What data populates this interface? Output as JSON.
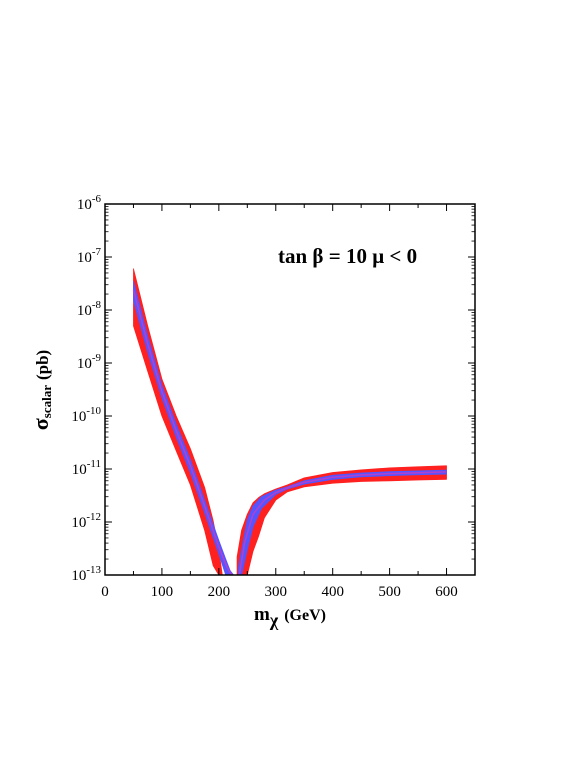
{
  "chart_data": {
    "type": "area",
    "annotation": "tan β = 10  μ < 0",
    "xlabel": {
      "main": "m",
      "sub": "χ",
      "units": "(GeV)"
    },
    "ylabel": {
      "main": "σ",
      "sub": "scalar",
      "units": "(pb)"
    },
    "xlim": [
      0,
      650
    ],
    "ylim_log10": [
      -13,
      -6
    ],
    "yscale": "log",
    "x_ticks": [
      0,
      100,
      200,
      300,
      400,
      500,
      600
    ],
    "y_ticks": [
      {
        "exp": -13,
        "base": "10",
        "power": "-13"
      },
      {
        "exp": -12,
        "base": "10",
        "power": "-12"
      },
      {
        "exp": -11,
        "base": "10",
        "power": "-11"
      },
      {
        "exp": -10,
        "base": "10",
        "power": "-10"
      },
      {
        "exp": -9,
        "base": "10",
        "power": "-9"
      },
      {
        "exp": -8,
        "base": "10",
        "power": "-8"
      },
      {
        "exp": -7,
        "base": "10",
        "power": "-7"
      },
      {
        "exp": -6,
        "base": "10",
        "power": "-6"
      }
    ],
    "colors": {
      "outer_band": "#ff2020",
      "inner_band": "#5555ff",
      "central_line": "#b040d0"
    },
    "series": [
      {
        "band": "outer",
        "segments": [
          {
            "x": [
              50,
              75,
              100,
              125,
              150,
              175,
              190,
              200,
              206,
              210
            ],
            "y_upper": [
              6e-08,
              5e-09,
              5e-10,
              1e-10,
              2.4e-11,
              4.5e-12,
              1.05e-12,
              3e-13,
              1e-13,
              1e-13
            ],
            "y_lower": [
              5e-09,
              7e-10,
              1e-10,
              2.2e-11,
              5e-12,
              7e-13,
              1.5e-13,
              1e-13,
              1e-13,
              1e-13
            ]
          },
          {
            "x": [
              232,
              240,
              250,
              260,
              270,
              280,
              300,
              320,
              350,
              400,
              450,
              500,
              550,
              600
            ],
            "y_upper": [
              2.2e-13,
              7e-13,
              1.4e-12,
              2.3e-12,
              2.9e-12,
              3.4e-12,
              4.2e-12,
              5e-12,
              6.8e-12,
              8.6e-12,
              9.6e-12,
              1.05e-11,
              1.1e-11,
              1.15e-11
            ],
            "y_lower": [
              1e-13,
              1e-13,
              1e-13,
              2.8e-13,
              5.5e-13,
              1.2e-12,
              2.6e-12,
              3.7e-12,
              4.6e-12,
              5.4e-12,
              5.8e-12,
              6e-12,
              6.2e-12,
              6.4e-12
            ]
          }
        ]
      },
      {
        "band": "inner",
        "segments": [
          {
            "x": [
              50,
              75,
              100,
              125,
              150,
              175,
              200,
              212,
              220,
              226
            ],
            "y_upper": [
              3.5e-08,
              3.2e-09,
              3.8e-10,
              7e-11,
              1.5e-11,
              2.6e-12,
              4.5e-13,
              2e-13,
              1.2e-13,
              1e-13
            ],
            "y_lower": [
              1.5e-08,
              1.6e-09,
              2.2e-10,
              4e-11,
              8.5e-12,
              1.5e-12,
              2.5e-13,
              1e-13,
              1e-13,
              1e-13
            ]
          },
          {
            "x": [
              234,
              240,
              250,
              260,
              275,
              300,
              320,
              350,
              400,
              450,
              500,
              550,
              600
            ],
            "y_upper": [
              1.3e-13,
              3e-13,
              1.1e-12,
              2e-12,
              3e-12,
              4e-12,
              4.6e-12,
              6e-12,
              7.6e-12,
              8.4e-12,
              8.9e-12,
              9.2e-12,
              9.5e-12
            ],
            "y_lower": [
              1e-13,
              1e-13,
              3e-13,
              8e-13,
              1.8e-12,
              3.3e-12,
              4.2e-12,
              5.2e-12,
              6.4e-12,
              7.1e-12,
              7.5e-12,
              7.8e-12,
              8e-12
            ]
          }
        ]
      },
      {
        "band": "central",
        "segments": [
          {
            "x": [
              50,
              75,
              100,
              125,
              150,
              175,
              200,
              212,
              220,
              224
            ],
            "y": [
              2.4e-08,
              2.3e-09,
              2.9e-10,
              5.3e-11,
              1.15e-11,
              2e-12,
              3.4e-13,
              1.6e-13,
              1.1e-13,
              1e-13
            ]
          },
          {
            "x": [
              236,
              245,
              260,
              280,
              300,
              320,
              350,
              400,
              450,
              500,
              550,
              600
            ],
            "y": [
              1e-13,
              4e-13,
              1.4e-12,
              2.6e-12,
              3.6e-12,
              4.4e-12,
              5.6e-12,
              7e-12,
              7.7e-12,
              8.2e-12,
              8.5e-12,
              8.8e-12
            ]
          }
        ]
      }
    ]
  }
}
